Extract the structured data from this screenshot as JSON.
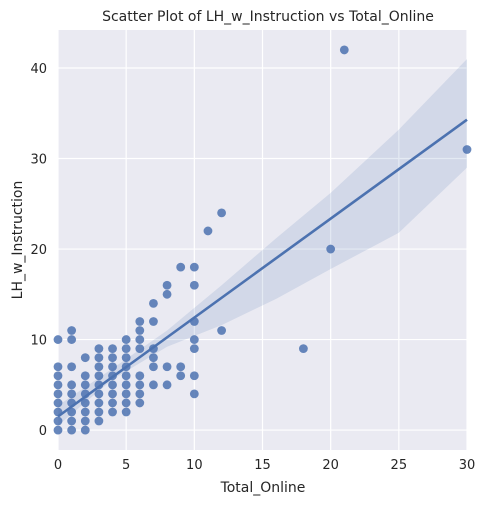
{
  "chart_data": {
    "type": "scatter",
    "title": "Scatter Plot of LH_w_Instruction vs Total_Online",
    "xlabel": "Total_Online",
    "ylabel": "LH_w_Instruction",
    "xlim": [
      0,
      30
    ],
    "ylim": [
      -2.2,
      44.2
    ],
    "xticks": [
      0,
      5,
      10,
      15,
      20,
      25,
      30
    ],
    "yticks": [
      0,
      10,
      20,
      30,
      40
    ],
    "grid": true,
    "colors": {
      "background": "#eaeaf2",
      "grid": "#ffffff",
      "points": "#4c72b0",
      "line": "#4c72b0",
      "ci_band": "#4c72b0"
    },
    "points": [
      [
        0,
        0
      ],
      [
        0,
        1
      ],
      [
        0,
        2
      ],
      [
        0,
        3
      ],
      [
        0,
        4
      ],
      [
        0,
        5
      ],
      [
        0,
        6
      ],
      [
        0,
        7
      ],
      [
        0,
        10
      ],
      [
        1,
        0
      ],
      [
        1,
        1
      ],
      [
        1,
        2
      ],
      [
        1,
        3
      ],
      [
        1,
        4
      ],
      [
        1,
        5
      ],
      [
        1,
        7
      ],
      [
        1,
        10
      ],
      [
        1,
        11
      ],
      [
        2,
        0
      ],
      [
        2,
        1
      ],
      [
        2,
        2
      ],
      [
        2,
        3
      ],
      [
        2,
        4
      ],
      [
        2,
        5
      ],
      [
        2,
        6
      ],
      [
        2,
        8
      ],
      [
        3,
        1
      ],
      [
        3,
        2
      ],
      [
        3,
        3
      ],
      [
        3,
        4
      ],
      [
        3,
        5
      ],
      [
        3,
        6
      ],
      [
        3,
        7
      ],
      [
        3,
        8
      ],
      [
        3,
        9
      ],
      [
        4,
        2
      ],
      [
        4,
        3
      ],
      [
        4,
        4
      ],
      [
        4,
        5
      ],
      [
        4,
        6
      ],
      [
        4,
        7
      ],
      [
        4,
        8
      ],
      [
        4,
        9
      ],
      [
        5,
        2
      ],
      [
        5,
        3
      ],
      [
        5,
        4
      ],
      [
        5,
        5
      ],
      [
        5,
        6
      ],
      [
        5,
        7
      ],
      [
        5,
        8
      ],
      [
        5,
        9
      ],
      [
        5,
        10
      ],
      [
        6,
        3
      ],
      [
        6,
        4
      ],
      [
        6,
        5
      ],
      [
        6,
        6
      ],
      [
        6,
        9
      ],
      [
        6,
        10
      ],
      [
        6,
        11
      ],
      [
        6,
        12
      ],
      [
        7,
        5
      ],
      [
        7,
        7
      ],
      [
        7,
        8
      ],
      [
        7,
        9
      ],
      [
        7,
        12
      ],
      [
        7,
        14
      ],
      [
        8,
        5
      ],
      [
        8,
        7
      ],
      [
        8,
        15
      ],
      [
        8,
        16
      ],
      [
        9,
        6
      ],
      [
        9,
        7
      ],
      [
        9,
        18
      ],
      [
        10,
        4
      ],
      [
        10,
        6
      ],
      [
        10,
        9
      ],
      [
        10,
        10
      ],
      [
        10,
        12
      ],
      [
        10,
        16
      ],
      [
        10,
        18
      ],
      [
        11,
        22
      ],
      [
        12,
        11
      ],
      [
        12,
        24
      ],
      [
        18,
        9
      ],
      [
        20,
        20
      ],
      [
        21,
        42
      ],
      [
        30,
        31
      ]
    ],
    "regression": {
      "intercept": 1.5,
      "slope": 1.093
    },
    "ci_band": [
      {
        "x": 0,
        "lo": 0.5,
        "hi": 2.7
      },
      {
        "x": 4,
        "lo": 5.6,
        "hi": 6.8
      },
      {
        "x": 8,
        "lo": 9.2,
        "hi": 11.0
      },
      {
        "x": 12,
        "lo": 11.6,
        "hi": 16.0
      },
      {
        "x": 16,
        "lo": 14.5,
        "hi": 21.2
      },
      {
        "x": 20,
        "lo": 17.8,
        "hi": 26.2
      },
      {
        "x": 25,
        "lo": 21.8,
        "hi": 33.2
      },
      {
        "x": 30,
        "lo": 29.0,
        "hi": 41.0
      }
    ]
  }
}
